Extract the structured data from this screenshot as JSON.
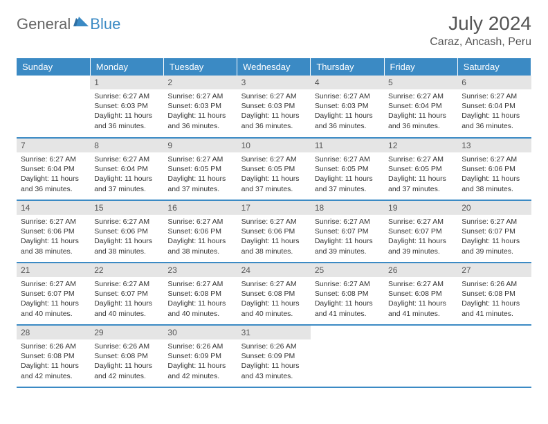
{
  "logo": {
    "part1": "General",
    "part2": "Blue"
  },
  "title": "July 2024",
  "subtitle": "Caraz, Ancash, Peru",
  "colors": {
    "header_bg": "#3b8ac4",
    "header_fg": "#ffffff",
    "daynum_bg": "#e5e5e5",
    "text": "#333333",
    "title": "#555555",
    "rule": "#3b8ac4"
  },
  "fonts": {
    "body_pt": 11,
    "title_pt": 28,
    "subtitle_pt": 16,
    "dayhead_pt": 13,
    "cell_pt": 10.5
  },
  "weekdays": [
    "Sunday",
    "Monday",
    "Tuesday",
    "Wednesday",
    "Thursday",
    "Friday",
    "Saturday"
  ],
  "weeks": [
    [
      {
        "n": "",
        "lines": [
          "",
          "",
          "",
          ""
        ]
      },
      {
        "n": "1",
        "lines": [
          "Sunrise: 6:27 AM",
          "Sunset: 6:03 PM",
          "Daylight: 11 hours",
          "and 36 minutes."
        ]
      },
      {
        "n": "2",
        "lines": [
          "Sunrise: 6:27 AM",
          "Sunset: 6:03 PM",
          "Daylight: 11 hours",
          "and 36 minutes."
        ]
      },
      {
        "n": "3",
        "lines": [
          "Sunrise: 6:27 AM",
          "Sunset: 6:03 PM",
          "Daylight: 11 hours",
          "and 36 minutes."
        ]
      },
      {
        "n": "4",
        "lines": [
          "Sunrise: 6:27 AM",
          "Sunset: 6:03 PM",
          "Daylight: 11 hours",
          "and 36 minutes."
        ]
      },
      {
        "n": "5",
        "lines": [
          "Sunrise: 6:27 AM",
          "Sunset: 6:04 PM",
          "Daylight: 11 hours",
          "and 36 minutes."
        ]
      },
      {
        "n": "6",
        "lines": [
          "Sunrise: 6:27 AM",
          "Sunset: 6:04 PM",
          "Daylight: 11 hours",
          "and 36 minutes."
        ]
      }
    ],
    [
      {
        "n": "7",
        "lines": [
          "Sunrise: 6:27 AM",
          "Sunset: 6:04 PM",
          "Daylight: 11 hours",
          "and 36 minutes."
        ]
      },
      {
        "n": "8",
        "lines": [
          "Sunrise: 6:27 AM",
          "Sunset: 6:04 PM",
          "Daylight: 11 hours",
          "and 37 minutes."
        ]
      },
      {
        "n": "9",
        "lines": [
          "Sunrise: 6:27 AM",
          "Sunset: 6:05 PM",
          "Daylight: 11 hours",
          "and 37 minutes."
        ]
      },
      {
        "n": "10",
        "lines": [
          "Sunrise: 6:27 AM",
          "Sunset: 6:05 PM",
          "Daylight: 11 hours",
          "and 37 minutes."
        ]
      },
      {
        "n": "11",
        "lines": [
          "Sunrise: 6:27 AM",
          "Sunset: 6:05 PM",
          "Daylight: 11 hours",
          "and 37 minutes."
        ]
      },
      {
        "n": "12",
        "lines": [
          "Sunrise: 6:27 AM",
          "Sunset: 6:05 PM",
          "Daylight: 11 hours",
          "and 37 minutes."
        ]
      },
      {
        "n": "13",
        "lines": [
          "Sunrise: 6:27 AM",
          "Sunset: 6:06 PM",
          "Daylight: 11 hours",
          "and 38 minutes."
        ]
      }
    ],
    [
      {
        "n": "14",
        "lines": [
          "Sunrise: 6:27 AM",
          "Sunset: 6:06 PM",
          "Daylight: 11 hours",
          "and 38 minutes."
        ]
      },
      {
        "n": "15",
        "lines": [
          "Sunrise: 6:27 AM",
          "Sunset: 6:06 PM",
          "Daylight: 11 hours",
          "and 38 minutes."
        ]
      },
      {
        "n": "16",
        "lines": [
          "Sunrise: 6:27 AM",
          "Sunset: 6:06 PM",
          "Daylight: 11 hours",
          "and 38 minutes."
        ]
      },
      {
        "n": "17",
        "lines": [
          "Sunrise: 6:27 AM",
          "Sunset: 6:06 PM",
          "Daylight: 11 hours",
          "and 38 minutes."
        ]
      },
      {
        "n": "18",
        "lines": [
          "Sunrise: 6:27 AM",
          "Sunset: 6:07 PM",
          "Daylight: 11 hours",
          "and 39 minutes."
        ]
      },
      {
        "n": "19",
        "lines": [
          "Sunrise: 6:27 AM",
          "Sunset: 6:07 PM",
          "Daylight: 11 hours",
          "and 39 minutes."
        ]
      },
      {
        "n": "20",
        "lines": [
          "Sunrise: 6:27 AM",
          "Sunset: 6:07 PM",
          "Daylight: 11 hours",
          "and 39 minutes."
        ]
      }
    ],
    [
      {
        "n": "21",
        "lines": [
          "Sunrise: 6:27 AM",
          "Sunset: 6:07 PM",
          "Daylight: 11 hours",
          "and 40 minutes."
        ]
      },
      {
        "n": "22",
        "lines": [
          "Sunrise: 6:27 AM",
          "Sunset: 6:07 PM",
          "Daylight: 11 hours",
          "and 40 minutes."
        ]
      },
      {
        "n": "23",
        "lines": [
          "Sunrise: 6:27 AM",
          "Sunset: 6:08 PM",
          "Daylight: 11 hours",
          "and 40 minutes."
        ]
      },
      {
        "n": "24",
        "lines": [
          "Sunrise: 6:27 AM",
          "Sunset: 6:08 PM",
          "Daylight: 11 hours",
          "and 40 minutes."
        ]
      },
      {
        "n": "25",
        "lines": [
          "Sunrise: 6:27 AM",
          "Sunset: 6:08 PM",
          "Daylight: 11 hours",
          "and 41 minutes."
        ]
      },
      {
        "n": "26",
        "lines": [
          "Sunrise: 6:27 AM",
          "Sunset: 6:08 PM",
          "Daylight: 11 hours",
          "and 41 minutes."
        ]
      },
      {
        "n": "27",
        "lines": [
          "Sunrise: 6:26 AM",
          "Sunset: 6:08 PM",
          "Daylight: 11 hours",
          "and 41 minutes."
        ]
      }
    ],
    [
      {
        "n": "28",
        "lines": [
          "Sunrise: 6:26 AM",
          "Sunset: 6:08 PM",
          "Daylight: 11 hours",
          "and 42 minutes."
        ]
      },
      {
        "n": "29",
        "lines": [
          "Sunrise: 6:26 AM",
          "Sunset: 6:08 PM",
          "Daylight: 11 hours",
          "and 42 minutes."
        ]
      },
      {
        "n": "30",
        "lines": [
          "Sunrise: 6:26 AM",
          "Sunset: 6:09 PM",
          "Daylight: 11 hours",
          "and 42 minutes."
        ]
      },
      {
        "n": "31",
        "lines": [
          "Sunrise: 6:26 AM",
          "Sunset: 6:09 PM",
          "Daylight: 11 hours",
          "and 43 minutes."
        ]
      },
      {
        "n": "",
        "lines": [
          "",
          "",
          "",
          ""
        ]
      },
      {
        "n": "",
        "lines": [
          "",
          "",
          "",
          ""
        ]
      },
      {
        "n": "",
        "lines": [
          "",
          "",
          "",
          ""
        ]
      }
    ]
  ]
}
